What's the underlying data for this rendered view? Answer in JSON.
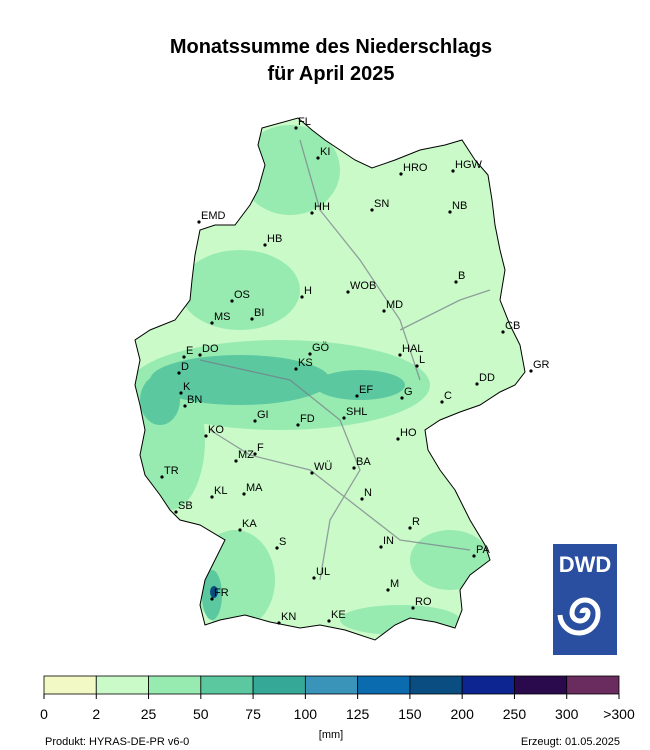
{
  "title": {
    "line1": "Monatssumme des Niederschlags",
    "line2": "für April 2025"
  },
  "cities": [
    "FL",
    "KI",
    "HRO",
    "HGW",
    "HH",
    "SN",
    "NB",
    "EMD",
    "HB",
    "B",
    "H",
    "WOB",
    "OS",
    "MD",
    "BI",
    "MS",
    "CB",
    "DO",
    "E",
    "GÖ",
    "KS",
    "HAL",
    "L",
    "D",
    "GR",
    "DD",
    "EF",
    "K",
    "G",
    "C",
    "BN",
    "GI",
    "FD",
    "SHL",
    "KO",
    "HO",
    "F",
    "MZ",
    "WÜ",
    "BA",
    "TR",
    "N",
    "KL",
    "MA",
    "SB",
    "R",
    "KA",
    "S",
    "IN",
    "PA",
    "UL",
    "M",
    "FR",
    "RO",
    "KN",
    "KE"
  ],
  "legend": {
    "colors": [
      "#f2f9c4",
      "#c9fac8",
      "#98ebb0",
      "#5cc8a0",
      "#36a898",
      "#3a93b8",
      "#0a6bae",
      "#0a4d80",
      "#0c2590",
      "#2a0a4c",
      "#6a2c5e"
    ],
    "labels": [
      "0",
      "2",
      "25",
      "50",
      "75",
      "100",
      "125",
      "150",
      "200",
      "250",
      "300",
      ">300"
    ],
    "unit": "[mm]"
  },
  "logo": "DWD",
  "footer": {
    "product": "Produkt: HYRAS-DE-PR v6-0",
    "created": "Erzeugt: 01.05.2025"
  }
}
